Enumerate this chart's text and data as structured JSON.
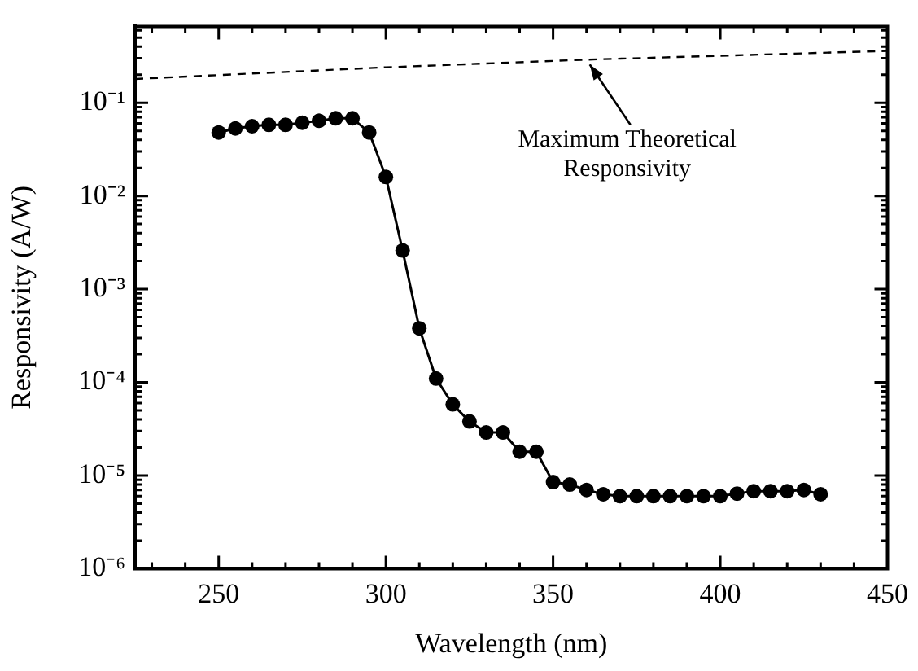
{
  "chart_data": {
    "type": "line",
    "xlabel": "Wavelength (nm)",
    "ylabel": "Responsivity (A/W)",
    "log": "y",
    "legend": false,
    "xlim": [
      225,
      450
    ],
    "xticks": [
      {
        "value": 230,
        "label": null
      },
      {
        "value": 240,
        "label": null
      },
      250,
      {
        "value": 260,
        "label": null
      },
      {
        "value": 270,
        "label": null
      },
      {
        "value": 280,
        "label": null
      },
      {
        "value": 290,
        "label": null
      },
      300,
      {
        "value": 310,
        "label": null
      },
      {
        "value": 320,
        "label": null
      },
      {
        "value": 330,
        "label": null
      },
      {
        "value": 340,
        "label": null
      },
      350,
      {
        "value": 360,
        "label": null
      },
      {
        "value": 370,
        "label": null
      },
      {
        "value": 380,
        "label": null
      },
      {
        "value": 390,
        "label": null
      },
      400,
      {
        "value": 410,
        "label": null
      },
      {
        "value": 420,
        "label": null
      },
      {
        "value": 430,
        "label": null
      },
      {
        "value": 440,
        "label": null
      },
      450
    ],
    "ylim": [
      1e-06,
      0.66
    ],
    "yticks": [
      {
        "value": 1e-06,
        "label": "10⁻⁶"
      },
      {
        "value": 2e-06,
        "label": null
      },
      {
        "value": 3e-06,
        "label": null
      },
      {
        "value": 4e-06,
        "label": null
      },
      {
        "value": 5e-06,
        "label": null
      },
      {
        "value": 6e-06,
        "label": null
      },
      {
        "value": 7e-06,
        "label": null
      },
      {
        "value": 8e-06,
        "label": null
      },
      {
        "value": 9e-06,
        "label": null
      },
      {
        "value": 1e-05,
        "label": "10⁻⁵"
      },
      {
        "value": 2e-05,
        "label": null
      },
      {
        "value": 3e-05,
        "label": null
      },
      {
        "value": 4e-05,
        "label": null
      },
      {
        "value": 5e-05,
        "label": null
      },
      {
        "value": 6e-05,
        "label": null
      },
      {
        "value": 7e-05,
        "label": null
      },
      {
        "value": 8e-05,
        "label": null
      },
      {
        "value": 9e-05,
        "label": null
      },
      {
        "value": 0.0001,
        "label": "10⁻⁴"
      },
      {
        "value": 0.0002,
        "label": null
      },
      {
        "value": 0.0003,
        "label": null
      },
      {
        "value": 0.0004,
        "label": null
      },
      {
        "value": 0.0005,
        "label": null
      },
      {
        "value": 0.0006,
        "label": null
      },
      {
        "value": 0.0007,
        "label": null
      },
      {
        "value": 0.0008,
        "label": null
      },
      {
        "value": 0.0009,
        "label": null
      },
      {
        "value": 0.001,
        "label": "10⁻³"
      },
      {
        "value": 0.002,
        "label": null
      },
      {
        "value": 0.003,
        "label": null
      },
      {
        "value": 0.004,
        "label": null
      },
      {
        "value": 0.005,
        "label": null
      },
      {
        "value": 0.006,
        "label": null
      },
      {
        "value": 0.007,
        "label": null
      },
      {
        "value": 0.008,
        "label": null
      },
      {
        "value": 0.009,
        "label": null
      },
      {
        "value": 0.01,
        "label": "10⁻²"
      },
      {
        "value": 0.02,
        "label": null
      },
      {
        "value": 0.03,
        "label": null
      },
      {
        "value": 0.04,
        "label": null
      },
      {
        "value": 0.05,
        "label": null
      },
      {
        "value": 0.06,
        "label": null
      },
      {
        "value": 0.07,
        "label": null
      },
      {
        "value": 0.08,
        "label": null
      },
      {
        "value": 0.09,
        "label": null
      },
      {
        "value": 0.1,
        "label": "10⁻¹"
      },
      {
        "value": 0.2,
        "label": null
      },
      {
        "value": 0.3,
        "label": null
      },
      {
        "value": 0.4,
        "label": null
      },
      {
        "value": 0.5,
        "label": null
      },
      {
        "value": 0.6,
        "label": null
      }
    ],
    "series": [
      {
        "color": "#000000",
        "marker": "circle",
        "line_style": "solid",
        "x": [
          250,
          255,
          260,
          265,
          270,
          275,
          280,
          285,
          290,
          295,
          300,
          305,
          310,
          315,
          320,
          325,
          330,
          335,
          340,
          345,
          350,
          355,
          360,
          365,
          370,
          375,
          380,
          385,
          390,
          395,
          400,
          405,
          410,
          415,
          420,
          425,
          430
        ],
        "values": [
          0.048,
          0.053,
          0.056,
          0.058,
          0.058,
          0.061,
          0.064,
          0.068,
          0.068,
          0.048,
          0.016,
          0.0026,
          0.00038,
          0.00011,
          5.8e-05,
          3.8e-05,
          2.9e-05,
          2.9e-05,
          1.8e-05,
          1.8e-05,
          8.5e-06,
          8e-06,
          7e-06,
          6.3e-06,
          6e-06,
          6e-06,
          6e-06,
          6e-06,
          6e-06,
          6e-06,
          6e-06,
          6.4e-06,
          6.8e-06,
          6.8e-06,
          6.8e-06,
          7e-06,
          6.3e-06
        ]
      },
      {
        "color": "#000000",
        "marker": "none",
        "line_style": "dashed",
        "x": [
          225,
          300,
          360,
          450
        ],
        "values": [
          0.18,
          0.24,
          0.29,
          0.36
        ]
      }
    ],
    "annotations": [
      {
        "text": "Maximum Theoretical\nResponsivity",
        "x": 360,
        "y": 0.29
      }
    ]
  }
}
